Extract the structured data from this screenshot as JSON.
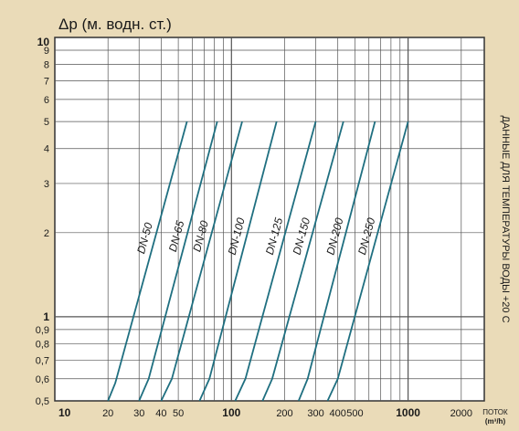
{
  "chart_data": {
    "type": "line",
    "title": "",
    "ylabel": "Δp (м. водн. ст.)",
    "side_note": "ДАННЫЕ ДЛЯ ТЕМПЕРАТУРЫ ВОДЫ +20 С",
    "xlabel_line1": "ПОТОК",
    "xlabel_line2": "(m³/h)",
    "x_scale": "log",
    "y_scale": "log",
    "xlim": [
      10,
      2700
    ],
    "ylim": [
      0.5,
      10
    ],
    "grid": true,
    "line_color": "#1f6f80",
    "x_ticks": [
      {
        "value": 10,
        "label": "10",
        "major": true
      },
      {
        "value": 20,
        "label": "20",
        "major": false
      },
      {
        "value": 30,
        "label": "30",
        "major": false
      },
      {
        "value": 40,
        "label": "40",
        "major": false
      },
      {
        "value": 50,
        "label": "50",
        "major": false
      },
      {
        "value": 100,
        "label": "100",
        "major": true
      },
      {
        "value": 200,
        "label": "200",
        "major": false
      },
      {
        "value": 300,
        "label": "300",
        "major": false
      },
      {
        "value": 400,
        "label": "400",
        "major": false
      },
      {
        "value": 500,
        "label": "500",
        "major": false
      },
      {
        "value": 1000,
        "label": "1000",
        "major": true
      },
      {
        "value": 2000,
        "label": "2000",
        "major": false
      }
    ],
    "y_ticks": [
      {
        "value": 0.5,
        "label": "0,5",
        "major": false
      },
      {
        "value": 0.6,
        "label": "0,6",
        "major": false
      },
      {
        "value": 0.7,
        "label": "0,7",
        "major": false
      },
      {
        "value": 0.8,
        "label": "0,8",
        "major": false
      },
      {
        "value": 0.9,
        "label": "0,9",
        "major": false
      },
      {
        "value": 1,
        "label": "1",
        "major": true
      },
      {
        "value": 2,
        "label": "2",
        "major": false
      },
      {
        "value": 3,
        "label": "3",
        "major": false
      },
      {
        "value": 4,
        "label": "4",
        "major": false
      },
      {
        "value": 5,
        "label": "5",
        "major": false
      },
      {
        "value": 6,
        "label": "6",
        "major": false
      },
      {
        "value": 7,
        "label": "7",
        "major": false
      },
      {
        "value": 8,
        "label": "8",
        "major": false
      },
      {
        "value": 9,
        "label": "9",
        "major": false
      },
      {
        "value": 10,
        "label": "10",
        "major": true
      }
    ],
    "series": [
      {
        "name": "DN-50",
        "points": [
          [
            20,
            0.5
          ],
          [
            22,
            0.58
          ],
          [
            56,
            5
          ]
        ]
      },
      {
        "name": "DN-65",
        "points": [
          [
            30,
            0.5
          ],
          [
            34,
            0.6
          ],
          [
            83,
            5
          ]
        ]
      },
      {
        "name": "DN-80",
        "points": [
          [
            40,
            0.5
          ],
          [
            46,
            0.6
          ],
          [
            115,
            5
          ]
        ]
      },
      {
        "name": "DN-100",
        "points": [
          [
            66,
            0.5
          ],
          [
            75,
            0.6
          ],
          [
            180,
            5
          ]
        ]
      },
      {
        "name": "DN-125",
        "points": [
          [
            105,
            0.5
          ],
          [
            120,
            0.6
          ],
          [
            300,
            5
          ]
        ]
      },
      {
        "name": "DN-150",
        "points": [
          [
            150,
            0.5
          ],
          [
            170,
            0.6
          ],
          [
            430,
            5
          ]
        ]
      },
      {
        "name": "DN-200",
        "points": [
          [
            240,
            0.5
          ],
          [
            270,
            0.6
          ],
          [
            650,
            5
          ]
        ]
      },
      {
        "name": "DN-250",
        "points": [
          [
            350,
            0.5
          ],
          [
            400,
            0.6
          ],
          [
            1000,
            5
          ]
        ]
      }
    ]
  }
}
